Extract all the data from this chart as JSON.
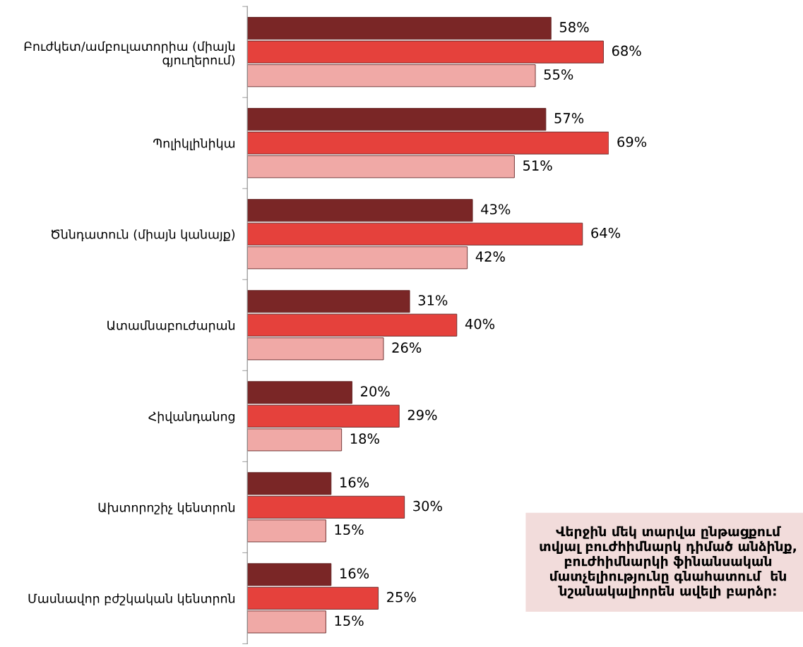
{
  "chart_data": {
    "type": "bar",
    "orientation": "horizontal",
    "grid": false,
    "legend": false,
    "categories": [
      "Բուժկետ/ամբուլատորիա (միայն գյուղերում)",
      "Պոլիկլինիկա",
      "Ծննդատուն (միայն կանայք)",
      "Ատամնաբուժարան",
      "Հիվանդանոց",
      "Ախտորոշիչ կենտրոն",
      "Մասնավոր բժշկական կենտրոն"
    ],
    "series": [
      {
        "color": "#7a2626",
        "values": [
          58,
          57,
          43,
          31,
          20,
          16,
          16
        ],
        "value_labels": [
          "58%",
          "57%",
          "43%",
          "31%",
          "20%",
          "16%",
          "16%"
        ]
      },
      {
        "color": "#e5413c",
        "values": [
          68,
          69,
          64,
          40,
          29,
          30,
          25
        ],
        "value_labels": [
          "68%",
          "69%",
          "64%",
          "40%",
          "29%",
          "30%",
          "25%"
        ]
      },
      {
        "color": "#f0a9a6",
        "values": [
          55,
          51,
          42,
          26,
          18,
          15,
          15
        ],
        "value_labels": [
          "55%",
          "51%",
          "42%",
          "26%",
          "18%",
          "15%",
          "15%"
        ]
      }
    ],
    "annotations": [
      "Վերջին մեկ տարվա ընթացքում տվյալ բուժհիմնարկ դիմած անձինք, բուժհիմնարկի ֆինանսական մատչելիությունը գնահատում  են նշանակալիորեն ավելի բարձր:"
    ]
  }
}
